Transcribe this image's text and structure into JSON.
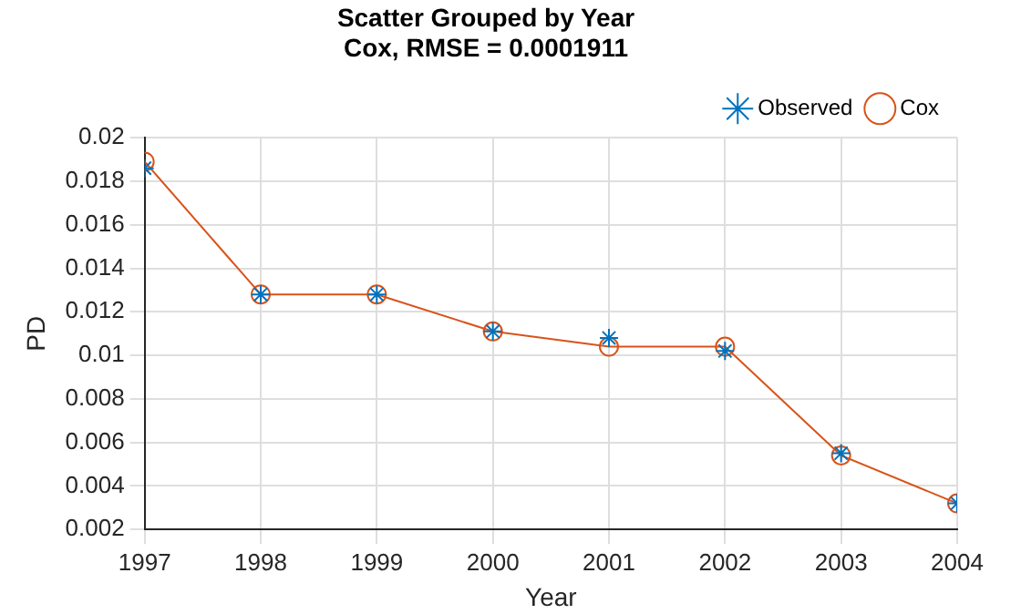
{
  "chart_data": {
    "type": "line",
    "title": "Scatter Grouped by Year",
    "subtitle": "Cox, RMSE = 0.0001911",
    "xlabel": "Year",
    "ylabel": "PD",
    "x": [
      1997,
      1998,
      1999,
      2000,
      2001,
      2002,
      2003,
      2004
    ],
    "series": [
      {
        "name": "Observed",
        "type": "scatter",
        "color": "#0072bd",
        "marker": "cross",
        "values": [
          0.0186,
          0.0128,
          0.0128,
          0.0111,
          0.0108,
          0.0102,
          0.0055,
          0.0032
        ]
      },
      {
        "name": "Cox",
        "type": "line",
        "color": "#d95319",
        "marker": "circle",
        "line_style": "solid",
        "values": [
          0.0189,
          0.0128,
          0.0128,
          0.0111,
          0.0104,
          0.0104,
          0.0054,
          0.0032
        ]
      }
    ],
    "xlim": [
      1997,
      2004
    ],
    "xticks": [
      1997,
      1998,
      1999,
      2000,
      2001,
      2002,
      2003,
      2004
    ],
    "ylim": [
      0.002,
      0.02
    ],
    "yticks": [
      0.002,
      0.004,
      0.006,
      0.008,
      0.01,
      0.012,
      0.014,
      0.016,
      0.018,
      0.02
    ],
    "grid": true,
    "legend": "top right"
  }
}
